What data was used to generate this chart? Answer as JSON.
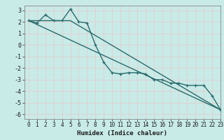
{
  "xlabel": "Humidex (Indice chaleur)",
  "xlim": [
    -0.5,
    23
  ],
  "ylim": [
    -6.4,
    3.4
  ],
  "yticks": [
    -6,
    -5,
    -4,
    -3,
    -2,
    -1,
    0,
    1,
    2,
    3
  ],
  "xticks": [
    0,
    1,
    2,
    3,
    4,
    5,
    6,
    7,
    8,
    9,
    10,
    11,
    12,
    13,
    14,
    15,
    16,
    17,
    18,
    19,
    20,
    21,
    22,
    23
  ],
  "background_color": "#c8ebe8",
  "grid_color": "#e8c8c8",
  "line_color": "#2a6b6b",
  "line1_x": [
    0,
    1,
    2,
    3,
    4,
    5,
    6,
    7,
    8,
    9,
    10,
    11,
    12,
    13,
    14,
    15,
    16,
    17,
    18,
    19,
    20,
    21,
    22,
    23
  ],
  "line1_y": [
    2.1,
    1.9,
    2.6,
    2.1,
    2.1,
    3.1,
    2.0,
    1.9,
    0.0,
    -1.5,
    -2.4,
    -2.5,
    -2.4,
    -2.4,
    -2.5,
    -3.0,
    -3.0,
    -3.3,
    -3.3,
    -3.5,
    -3.5,
    -3.5,
    -4.4,
    -5.6
  ],
  "line2_x": [
    0,
    5,
    23
  ],
  "line2_y": [
    2.1,
    2.1,
    -5.6
  ],
  "line3_x": [
    0,
    23
  ],
  "line3_y": [
    2.1,
    -5.6
  ],
  "xlabel_fontsize": 6.5,
  "tick_fontsize": 5.5
}
